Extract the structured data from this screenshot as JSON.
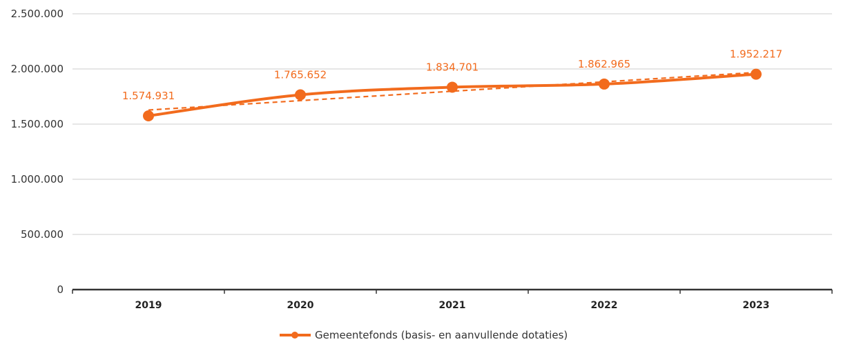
{
  "chart_data": {
    "type": "line",
    "categories": [
      "2019",
      "2020",
      "2021",
      "2022",
      "2023"
    ],
    "series": [
      {
        "name": "Gemeentefonds (basis- en aanvullende dotaties)",
        "values": [
          1574931,
          1765652,
          1834701,
          1862965,
          1952217
        ],
        "data_labels": [
          "1.574.931",
          "1.765.652",
          "1.834.701",
          "1.862.965",
          "1.952.217"
        ],
        "color": "#f26b1d"
      }
    ],
    "trendline": {
      "style": "dashed",
      "type": "linear",
      "color": "#f26b1d"
    },
    "ylim": [
      0,
      2500000
    ],
    "yticks": [
      0,
      500000,
      1000000,
      1500000,
      2000000,
      2500000
    ],
    "ytick_labels": [
      "0",
      "500.000",
      "1.000.000",
      "1.500.000",
      "2.000.000",
      "2.500.000"
    ],
    "grid": true,
    "legend_position": "bottom-center",
    "title": "",
    "xlabel": "",
    "ylabel": ""
  }
}
